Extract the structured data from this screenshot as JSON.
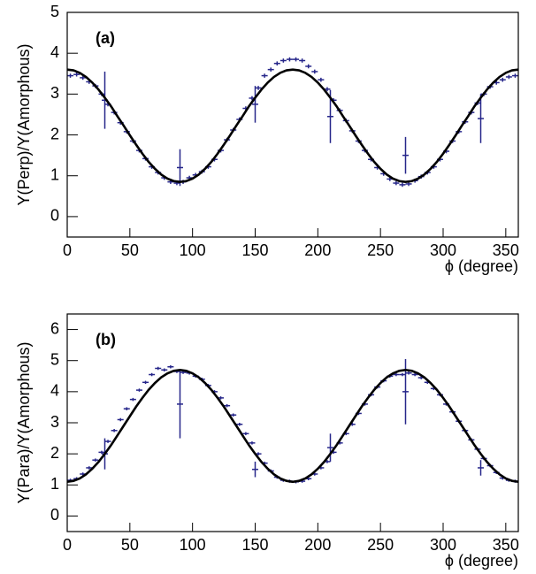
{
  "chart_data": [
    {
      "type": "scatter",
      "label": "(a)",
      "ylabel": "Y(Perp)/Y(Amorphous)",
      "xlabel": "ϕ (degree)",
      "xlim": [
        0,
        360
      ],
      "ylim": [
        -0.5,
        5
      ],
      "xticks": [
        0,
        50,
        100,
        150,
        200,
        250,
        300,
        350
      ],
      "yticks": [
        0,
        1,
        2,
        3,
        4,
        5
      ],
      "series": [
        {
          "mode": "errorbar",
          "color": "#26268a",
          "x": [
            2.5,
            7.5,
            12.5,
            17.5,
            22.5,
            27.5,
            32.5,
            37.5,
            42.5,
            47.5,
            52.5,
            57.5,
            62.5,
            67.5,
            72.5,
            77.5,
            82.5,
            87.5,
            92.5,
            97.5,
            102.5,
            107.5,
            112.5,
            117.5,
            122.5,
            127.5,
            132.5,
            137.5,
            142.5,
            147.5,
            152.5,
            157.5,
            162.5,
            167.5,
            172.5,
            177.5,
            182.5,
            187.5,
            192.5,
            197.5,
            202.5,
            207.5,
            212.5,
            217.5,
            222.5,
            227.5,
            232.5,
            237.5,
            242.5,
            247.5,
            252.5,
            257.5,
            262.5,
            267.5,
            272.5,
            277.5,
            282.5,
            287.5,
            292.5,
            297.5,
            302.5,
            307.5,
            312.5,
            317.5,
            322.5,
            327.5,
            332.5,
            337.5,
            342.5,
            347.5,
            352.5,
            357.5
          ],
          "values": [
            3.45,
            3.48,
            3.4,
            3.3,
            3.2,
            3.0,
            2.75,
            2.55,
            2.3,
            2.08,
            1.85,
            1.62,
            1.42,
            1.22,
            1.08,
            0.95,
            0.85,
            0.82,
            0.85,
            0.95,
            1.02,
            1.1,
            1.22,
            1.4,
            1.62,
            1.88,
            2.12,
            2.38,
            2.65,
            2.9,
            3.15,
            3.45,
            3.6,
            3.75,
            3.82,
            3.85,
            3.85,
            3.82,
            3.68,
            3.55,
            3.35,
            3.12,
            2.85,
            2.6,
            2.35,
            2.1,
            1.85,
            1.62,
            1.4,
            1.2,
            1.05,
            0.92,
            0.82,
            0.78,
            0.8,
            0.88,
            0.98,
            1.08,
            1.22,
            1.4,
            1.6,
            1.85,
            2.08,
            2.32,
            2.55,
            2.78,
            3.0,
            3.18,
            3.28,
            3.35,
            3.42,
            3.45
          ],
          "errors": [
            0.05,
            0.05,
            0.05,
            0.05,
            0.05,
            0.05,
            0.05,
            0.05,
            0.05,
            0.05,
            0.05,
            0.05,
            0.05,
            0.05,
            0.05,
            0.05,
            0.05,
            0.05,
            0.05,
            0.05,
            0.05,
            0.05,
            0.05,
            0.05,
            0.05,
            0.05,
            0.05,
            0.05,
            0.05,
            0.05,
            0.05,
            0.05,
            0.05,
            0.05,
            0.05,
            0.05,
            0.05,
            0.05,
            0.05,
            0.05,
            0.05,
            0.05,
            0.05,
            0.05,
            0.05,
            0.05,
            0.05,
            0.05,
            0.05,
            0.05,
            0.05,
            0.05,
            0.05,
            0.05,
            0.05,
            0.05,
            0.05,
            0.05,
            0.05,
            0.05,
            0.05,
            0.05,
            0.05,
            0.05,
            0.05,
            0.05,
            0.05,
            0.05,
            0.05,
            0.05,
            0.05,
            0.05
          ]
        },
        {
          "mode": "errorbar",
          "color": "#26268a",
          "x": [
            30,
            90,
            150,
            210,
            270,
            330
          ],
          "values": [
            2.85,
            1.2,
            2.75,
            2.45,
            1.5,
            2.4
          ],
          "errors": [
            0.7,
            0.45,
            0.45,
            0.65,
            0.45,
            0.6
          ]
        },
        {
          "mode": "line",
          "color": "#000000",
          "x": [
            0,
            5,
            10,
            15,
            20,
            25,
            30,
            35,
            40,
            45,
            50,
            55,
            60,
            65,
            70,
            75,
            80,
            85,
            90,
            95,
            100,
            105,
            110,
            115,
            120,
            125,
            130,
            135,
            140,
            145,
            150,
            155,
            160,
            165,
            170,
            175,
            180,
            185,
            190,
            195,
            200,
            205,
            210,
            215,
            220,
            225,
            230,
            235,
            240,
            245,
            250,
            255,
            260,
            265,
            270,
            275,
            280,
            285,
            290,
            295,
            300,
            305,
            310,
            315,
            320,
            325,
            330,
            335,
            340,
            345,
            350,
            355,
            360
          ],
          "values": [
            3.6,
            3.58,
            3.52,
            3.42,
            3.28,
            3.11,
            2.91,
            2.7,
            2.46,
            2.23,
            1.99,
            1.76,
            1.54,
            1.34,
            1.17,
            1.03,
            0.93,
            0.87,
            0.85,
            0.87,
            0.93,
            1.03,
            1.17,
            1.34,
            1.54,
            1.76,
            1.99,
            2.23,
            2.46,
            2.7,
            2.91,
            3.11,
            3.28,
            3.42,
            3.52,
            3.58,
            3.6,
            3.58,
            3.52,
            3.42,
            3.28,
            3.11,
            2.91,
            2.7,
            2.46,
            2.23,
            1.99,
            1.76,
            1.54,
            1.34,
            1.17,
            1.03,
            0.93,
            0.87,
            0.85,
            0.87,
            0.93,
            1.03,
            1.17,
            1.34,
            1.54,
            1.76,
            1.99,
            2.23,
            2.46,
            2.7,
            2.91,
            3.11,
            3.28,
            3.42,
            3.52,
            3.58,
            3.6
          ]
        }
      ]
    },
    {
      "type": "scatter",
      "label": "(b)",
      "ylabel": "Y(Para)/Y(Amorphous)",
      "xlabel": "ϕ (degree)",
      "xlim": [
        0,
        360
      ],
      "ylim": [
        -0.5,
        6.5
      ],
      "xticks": [
        0,
        50,
        100,
        150,
        200,
        250,
        300,
        350
      ],
      "yticks": [
        0,
        1,
        2,
        3,
        4,
        5,
        6
      ],
      "series": [
        {
          "mode": "errorbar",
          "color": "#26268a",
          "x": [
            2.5,
            7.5,
            12.5,
            17.5,
            22.5,
            27.5,
            32.5,
            37.5,
            42.5,
            47.5,
            52.5,
            57.5,
            62.5,
            67.5,
            72.5,
            77.5,
            82.5,
            87.5,
            92.5,
            97.5,
            102.5,
            107.5,
            112.5,
            117.5,
            122.5,
            127.5,
            132.5,
            137.5,
            142.5,
            147.5,
            152.5,
            157.5,
            162.5,
            167.5,
            172.5,
            177.5,
            182.5,
            187.5,
            192.5,
            197.5,
            202.5,
            207.5,
            212.5,
            217.5,
            222.5,
            227.5,
            232.5,
            237.5,
            242.5,
            247.5,
            252.5,
            257.5,
            262.5,
            267.5,
            272.5,
            277.5,
            282.5,
            287.5,
            292.5,
            297.5,
            302.5,
            307.5,
            312.5,
            317.5,
            322.5,
            327.5,
            332.5,
            337.5,
            342.5,
            347.5,
            352.5,
            357.5
          ],
          "values": [
            1.15,
            1.2,
            1.35,
            1.55,
            1.8,
            2.05,
            2.4,
            2.75,
            3.1,
            3.45,
            3.75,
            4.05,
            4.3,
            4.55,
            4.75,
            4.7,
            4.8,
            4.65,
            4.62,
            4.6,
            4.5,
            4.4,
            4.2,
            4.0,
            3.8,
            3.55,
            3.25,
            2.95,
            2.65,
            2.35,
            2.0,
            1.7,
            1.45,
            1.25,
            1.15,
            1.12,
            1.1,
            1.12,
            1.2,
            1.35,
            1.55,
            1.75,
            2.05,
            2.35,
            2.65,
            2.95,
            3.3,
            3.6,
            3.9,
            4.15,
            4.35,
            4.5,
            4.55,
            4.55,
            4.6,
            4.55,
            4.45,
            4.3,
            4.1,
            3.9,
            3.6,
            3.35,
            3.05,
            2.75,
            2.45,
            2.15,
            1.85,
            1.62,
            1.4,
            1.22,
            1.15,
            1.12
          ],
          "errors": [
            0.05,
            0.05,
            0.05,
            0.05,
            0.05,
            0.05,
            0.05,
            0.05,
            0.05,
            0.05,
            0.05,
            0.05,
            0.05,
            0.05,
            0.05,
            0.05,
            0.05,
            0.05,
            0.05,
            0.05,
            0.05,
            0.05,
            0.05,
            0.05,
            0.05,
            0.05,
            0.05,
            0.05,
            0.05,
            0.05,
            0.05,
            0.05,
            0.05,
            0.05,
            0.05,
            0.05,
            0.05,
            0.05,
            0.05,
            0.05,
            0.05,
            0.05,
            0.05,
            0.05,
            0.05,
            0.05,
            0.05,
            0.05,
            0.05,
            0.05,
            0.05,
            0.05,
            0.05,
            0.05,
            0.05,
            0.05,
            0.05,
            0.05,
            0.05,
            0.05,
            0.05,
            0.05,
            0.05,
            0.05,
            0.05,
            0.05,
            0.05,
            0.05,
            0.05,
            0.05,
            0.05,
            0.05
          ]
        },
        {
          "mode": "errorbar",
          "color": "#26268a",
          "x": [
            30,
            90,
            150,
            210,
            270,
            330
          ],
          "values": [
            2.0,
            3.6,
            1.5,
            2.2,
            4.0,
            1.55
          ],
          "errors": [
            0.5,
            1.1,
            0.25,
            0.45,
            1.05,
            0.25
          ]
        },
        {
          "mode": "line",
          "color": "#000000",
          "x": [
            0,
            5,
            10,
            15,
            20,
            25,
            30,
            35,
            40,
            45,
            50,
            55,
            60,
            65,
            70,
            75,
            80,
            85,
            90,
            95,
            100,
            105,
            110,
            115,
            120,
            125,
            130,
            135,
            140,
            145,
            150,
            155,
            160,
            165,
            170,
            175,
            180,
            185,
            190,
            195,
            200,
            205,
            210,
            215,
            220,
            225,
            230,
            235,
            240,
            245,
            250,
            255,
            260,
            265,
            270,
            275,
            280,
            285,
            290,
            295,
            300,
            305,
            310,
            315,
            320,
            325,
            330,
            335,
            340,
            345,
            350,
            355,
            360
          ],
          "values": [
            1.1,
            1.13,
            1.21,
            1.34,
            1.52,
            1.74,
            2.0,
            2.28,
            2.59,
            2.9,
            3.21,
            3.52,
            3.8,
            4.06,
            4.28,
            4.46,
            4.59,
            4.67,
            4.7,
            4.67,
            4.59,
            4.46,
            4.28,
            4.06,
            3.8,
            3.52,
            3.21,
            2.9,
            2.59,
            2.28,
            2.0,
            1.74,
            1.52,
            1.34,
            1.21,
            1.13,
            1.1,
            1.13,
            1.21,
            1.34,
            1.52,
            1.74,
            2.0,
            2.28,
            2.59,
            2.9,
            3.21,
            3.52,
            3.8,
            4.06,
            4.28,
            4.46,
            4.59,
            4.67,
            4.7,
            4.67,
            4.59,
            4.46,
            4.28,
            4.06,
            3.8,
            3.52,
            3.21,
            2.9,
            2.59,
            2.28,
            2.0,
            1.74,
            1.52,
            1.34,
            1.21,
            1.13,
            1.1
          ]
        }
      ]
    }
  ]
}
